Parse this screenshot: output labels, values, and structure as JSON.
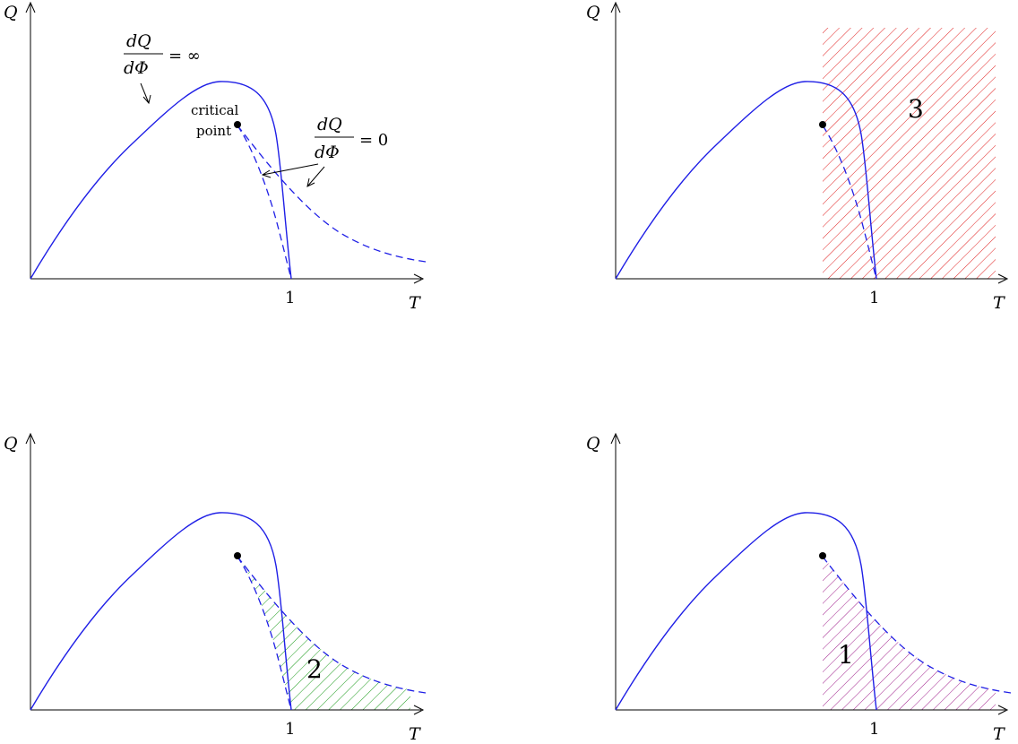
{
  "axes": {
    "y_label": "Q",
    "x_label": "T",
    "tick_label": "1"
  },
  "annotations": {
    "dQ": "dQ",
    "dPhi": "dΦ",
    "infinity_eq": "= ∞",
    "zero_eq": "= 0",
    "critical_line1": "critical",
    "critical_line2": "point"
  },
  "regions": {
    "r1": "1",
    "r2": "2",
    "r3": "3"
  },
  "colors": {
    "curve": "#1f1fe6",
    "hatch_red": "#e02020",
    "hatch_green": "#1a9a1a",
    "hatch_purple": "#a0208c"
  }
}
